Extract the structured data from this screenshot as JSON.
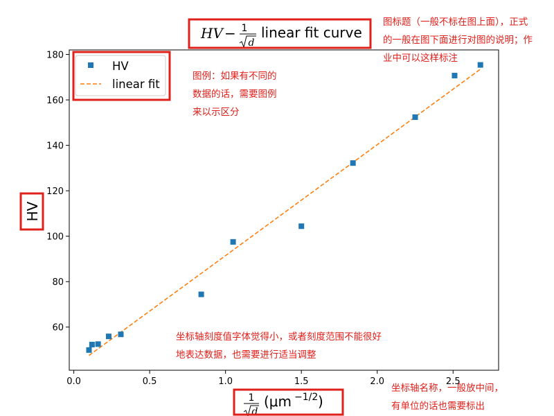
{
  "chart_data": {
    "type": "scatter",
    "title": "linear fit curve",
    "title_math": {
      "lhs": "HV",
      "operator": "−",
      "fraction_numerator": "1",
      "fraction_denominator": "d"
    },
    "xlabel": "(μm",
    "xlabel_exponent": "−1/2",
    "xlabel_close": ")",
    "xlabel_fraction": {
      "numerator": "1",
      "denominator": "d"
    },
    "ylabel": "HV",
    "xlim": [
      -0.03,
      2.8
    ],
    "ylim": [
      41,
      182
    ],
    "x_ticks": [
      0.0,
      0.5,
      1.0,
      1.5,
      2.0,
      2.5
    ],
    "x_tick_labels": [
      "0.0",
      "0.5",
      "1.0",
      "1.5",
      "2.0",
      "2.5"
    ],
    "y_ticks": [
      60,
      80,
      100,
      120,
      140,
      160,
      180
    ],
    "y_tick_labels": [
      "60",
      "80",
      "100",
      "120",
      "140",
      "160",
      "180"
    ],
    "grid": false,
    "legend_position": "top-left",
    "series": [
      {
        "name": "HV",
        "kind": "scatter",
        "marker": "square",
        "color": "#1f77b4",
        "x": [
          0.1,
          0.12,
          0.16,
          0.23,
          0.31,
          0.84,
          1.05,
          1.5,
          1.84,
          2.25,
          2.51,
          2.68
        ],
        "y": [
          49.9,
          52.3,
          52.5,
          55.9,
          56.8,
          74.4,
          97.5,
          104.4,
          132.2,
          152.4,
          170.7,
          175.4
        ]
      },
      {
        "name": "linear fit",
        "kind": "line",
        "style": "dashed",
        "color": "#ff7f0e",
        "x": [
          0.1,
          2.68
        ],
        "y": [
          47.5,
          173.5
        ]
      }
    ]
  },
  "annotations": {
    "title_note": [
      "图标题（一般不标在图上面），正式",
      "的一般在图下面进行对图的说明；作",
      "业中可以这样标注"
    ],
    "legend_note": [
      "图例：如果有不同的",
      "数据的话，需要图例",
      "来以示区分"
    ],
    "tick_note": [
      "坐标轴刻度值字体觉得小，或者刻度范围不能很好",
      "地表达数据，也需要进行适当调整"
    ],
    "axis_note": [
      "坐标轴名称，一般放中间，",
      "有单位的话也需要标出"
    ],
    "highlight_color": "#e0201b"
  }
}
